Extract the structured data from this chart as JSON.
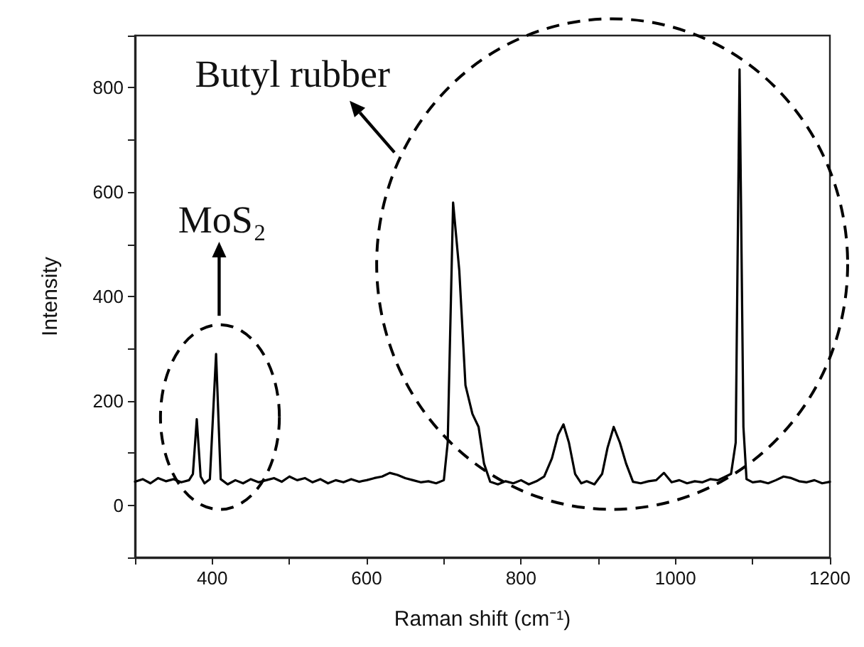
{
  "chart_data": {
    "type": "line",
    "xlabel": "Raman shift (cm⁻¹)",
    "ylabel": "Intensity",
    "annotations": [
      "Butyl rubber",
      "MoS₂"
    ],
    "x": [
      300,
      310,
      320,
      330,
      340,
      350,
      360,
      370,
      375,
      380,
      385,
      390,
      397,
      405,
      411,
      420,
      430,
      440,
      450,
      460,
      470,
      480,
      490,
      500,
      510,
      520,
      530,
      540,
      550,
      560,
      570,
      580,
      590,
      600,
      610,
      620,
      630,
      640,
      650,
      660,
      670,
      680,
      690,
      700,
      705,
      712,
      720,
      728,
      737,
      745,
      752,
      760,
      770,
      780,
      790,
      800,
      810,
      820,
      830,
      840,
      848,
      855,
      862,
      870,
      878,
      885,
      895,
      905,
      912,
      920,
      928,
      936,
      945,
      955,
      965,
      975,
      985,
      995,
      1005,
      1015,
      1025,
      1035,
      1045,
      1055,
      1065,
      1072,
      1078,
      1083,
      1088,
      1092,
      1100,
      1110,
      1120,
      1130,
      1140,
      1150,
      1160,
      1170,
      1180,
      1190,
      1200
    ],
    "series": [
      {
        "color": "#000000",
        "values": [
          45,
          50,
          42,
          52,
          46,
          50,
          44,
          48,
          60,
          165,
          55,
          42,
          50,
          290,
          50,
          40,
          48,
          42,
          50,
          44,
          48,
          52,
          45,
          55,
          48,
          52,
          44,
          50,
          42,
          48,
          44,
          50,
          45,
          48,
          52,
          55,
          62,
          58,
          52,
          48,
          44,
          46,
          42,
          48,
          120,
          580,
          450,
          230,
          175,
          150,
          80,
          45,
          40,
          46,
          42,
          48,
          40,
          46,
          55,
          90,
          135,
          155,
          120,
          60,
          42,
          46,
          40,
          60,
          110,
          150,
          120,
          80,
          45,
          42,
          46,
          48,
          62,
          44,
          48,
          42,
          46,
          44,
          50,
          48,
          55,
          60,
          120,
          835,
          150,
          50,
          44,
          46,
          42,
          48,
          55,
          52,
          46,
          44,
          48,
          42,
          45
        ]
      }
    ],
    "xlim": [
      300,
      1200
    ],
    "xticks": [
      {
        "value": 300,
        "label": null
      },
      400,
      {
        "value": 500,
        "label": null
      },
      600,
      {
        "value": 700,
        "label": null
      },
      800,
      {
        "value": 900,
        "label": null
      },
      1000,
      {
        "value": 1100,
        "label": null
      },
      1200
    ],
    "ylim": [
      -100,
      900
    ],
    "yticks": [
      {
        "value": -100,
        "label": null
      },
      0,
      {
        "value": 100,
        "label": null
      },
      200,
      {
        "value": 300,
        "label": null
      },
      400,
      {
        "value": 500,
        "label": null
      },
      600,
      {
        "value": 700,
        "label": null
      },
      800,
      {
        "value": 900,
        "label": null
      }
    ],
    "grid": false,
    "marker": "none",
    "line_style": "solid"
  }
}
